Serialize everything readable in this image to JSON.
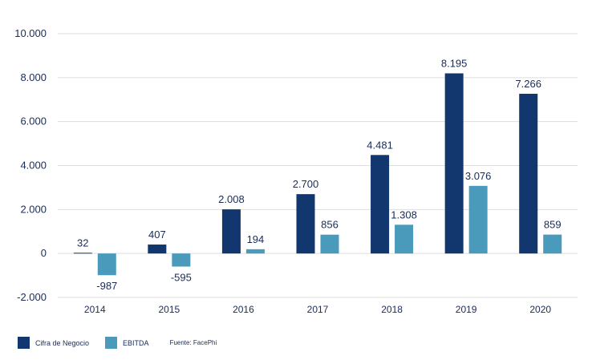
{
  "chart_data": {
    "type": "bar",
    "categories": [
      "2014",
      "2015",
      "2016",
      "2017",
      "2018",
      "2019",
      "2020"
    ],
    "series": [
      {
        "name": "Cifra de Negocio",
        "values": [
          32,
          407,
          2008,
          2700,
          4481,
          8195,
          7266
        ],
        "labels": [
          "32",
          "407",
          "2.008",
          "2.700",
          "4.481",
          "8.195",
          "7.266"
        ],
        "color": "#12366e"
      },
      {
        "name": "EBITDA",
        "values": [
          -987,
          -595,
          194,
          856,
          1308,
          3076,
          859
        ],
        "labels": [
          "-987",
          "-595",
          "194",
          "856",
          "1.308",
          "3.076",
          "859"
        ],
        "color": "#4a9bbb"
      }
    ],
    "ylim": [
      -2000,
      10000
    ],
    "yticks": [
      10000,
      8000,
      6000,
      4000,
      2000,
      0,
      -2000
    ],
    "ytick_labels": [
      "10.000",
      "8.000",
      "6.000",
      "4.000",
      "2.000",
      "0",
      "-2.000"
    ],
    "grid": true,
    "legend_position": "bottom-left"
  },
  "source": "Fuente: FacePhi"
}
